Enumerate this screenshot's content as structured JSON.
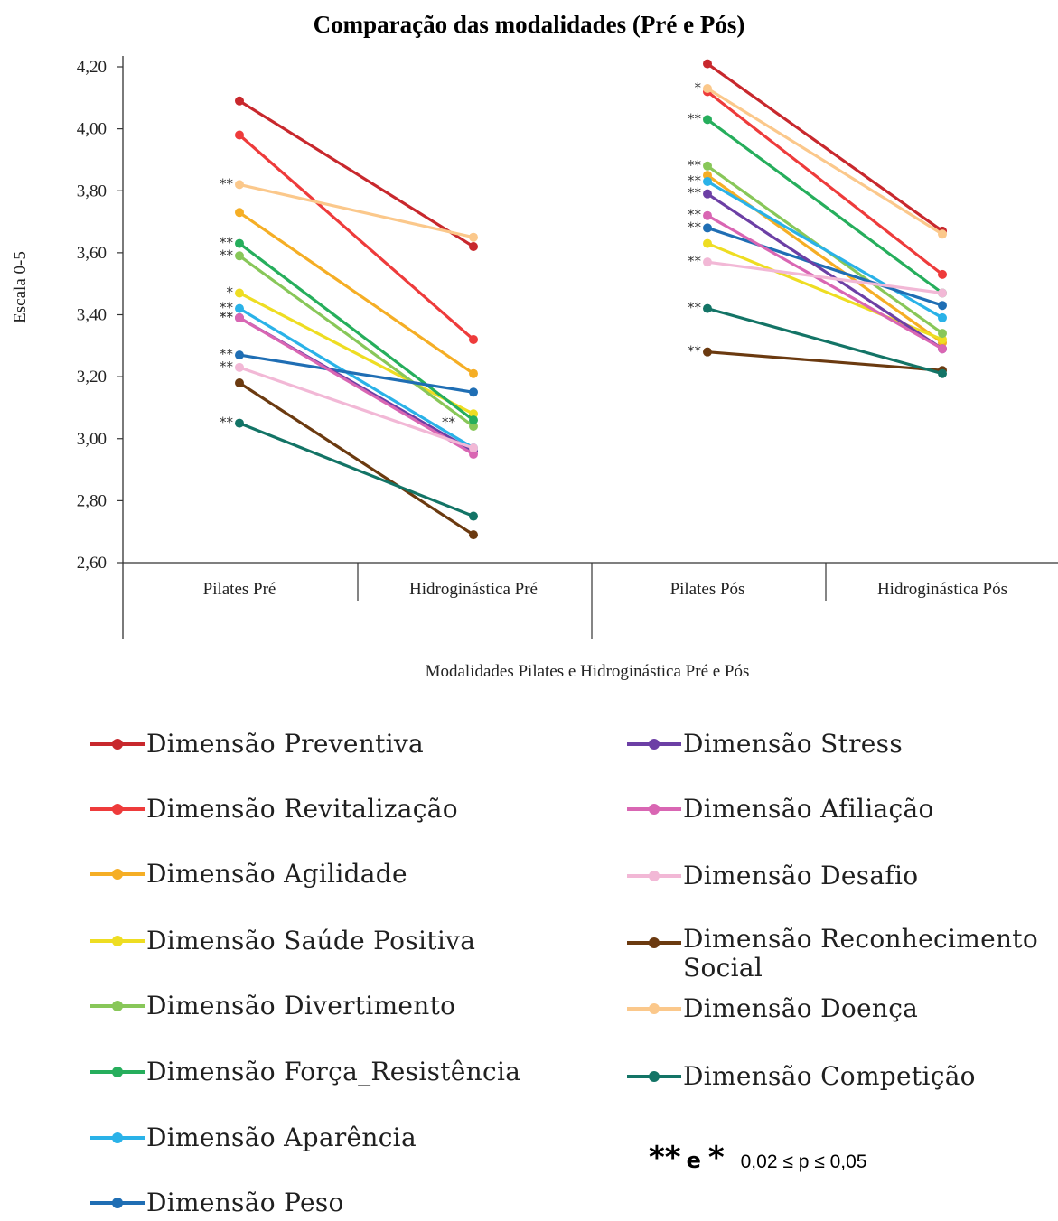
{
  "chart_data": {
    "type": "line",
    "title": "Comparação das modalidades (Pré e Pós)",
    "xlabel": "Modalidades Pilates e Hidroginástica Pré e Pós",
    "ylabel": "Escala 0-5",
    "ylim": [
      2.6,
      4.2
    ],
    "yticks": [
      "2,60",
      "2,80",
      "3,00",
      "3,20",
      "3,40",
      "3,60",
      "3,80",
      "4,00",
      "4,20"
    ],
    "categories": [
      "Pilates Pré",
      "Hidroginástica Pré",
      "Pilates Pós",
      "Hidroginástica Pós"
    ],
    "groups": [
      {
        "categories": [
          "Pilates Pré",
          "Hidroginástica Pré"
        ]
      },
      {
        "categories": [
          "Pilates Pós",
          "Hidroginástica Pós"
        ]
      }
    ],
    "grid": false,
    "legend_position": "bottom",
    "series": [
      {
        "name": "Dimensão Preventiva",
        "color": "#c8282d",
        "pre": [
          4.09,
          3.62
        ],
        "pos": [
          4.21,
          3.67
        ],
        "sig_pre": "",
        "sig_pos": ""
      },
      {
        "name": "Dimensão Revitalização",
        "color": "#ee3b3b",
        "pre": [
          3.98,
          3.32
        ],
        "pos": [
          4.12,
          3.53
        ],
        "sig_pre": "",
        "sig_pos": ""
      },
      {
        "name": "Dimensão Agilidade",
        "color": "#f5ae25",
        "pre": [
          3.73,
          3.21
        ],
        "pos": [
          3.85,
          3.31
        ],
        "sig_pre": "",
        "sig_pos": ""
      },
      {
        "name": "Dimensão Saúde Positiva",
        "color": "#eedd22",
        "pre": [
          3.47,
          3.08
        ],
        "pos": [
          3.63,
          3.32
        ],
        "sig_pre": "*",
        "sig_pos": ""
      },
      {
        "name": "Dimensão Divertimento",
        "color": "#88c759",
        "pre": [
          3.59,
          3.04
        ],
        "pos": [
          3.88,
          3.34
        ],
        "sig_pre": "**",
        "sig_pos": "**"
      },
      {
        "name": "Dimensão Força_Resistência",
        "color": "#26ae5c",
        "pre": [
          3.63,
          3.06
        ],
        "pos": [
          4.03,
          3.47
        ],
        "sig_pre": "**",
        "sig_pos": "**"
      },
      {
        "name": "Dimensão Aparência",
        "color": "#2ab2e8",
        "pre": [
          3.42,
          2.97
        ],
        "pos": [
          3.83,
          3.39
        ],
        "sig_pre": "**",
        "sig_pos": "**"
      },
      {
        "name": "Dimensão Peso",
        "color": "#1f6eb4",
        "pre": [
          3.27,
          3.15
        ],
        "pos": [
          3.68,
          3.43
        ],
        "sig_pre": "**",
        "sig_pos": "**"
      },
      {
        "name": "Dimensão Stress",
        "color": "#6c3fa5",
        "pre": [
          3.39,
          2.96
        ],
        "pos": [
          3.79,
          3.29
        ],
        "sig_pre": "**",
        "sig_pos": "**"
      },
      {
        "name": "Dimensão Afiliação",
        "color": "#d966b3",
        "pre": [
          3.39,
          2.95
        ],
        "pos": [
          3.72,
          3.29
        ],
        "sig_pre": "**",
        "sig_pos": "**"
      },
      {
        "name": "Dimensão Desafio",
        "color": "#f2b8d6",
        "pre": [
          3.23,
          2.97
        ],
        "pos": [
          3.57,
          3.47
        ],
        "sig_pre": "**",
        "sig_pos": "**"
      },
      {
        "name": "Dimensão Reconhecimento Social",
        "color": "#6b3a10",
        "pre": [
          3.18,
          2.69
        ],
        "pos": [
          3.28,
          3.22
        ],
        "sig_pre": "",
        "sig_pos": "**"
      },
      {
        "name": "Dimensão Doença",
        "color": "#fbc88b",
        "pre": [
          3.82,
          3.65
        ],
        "pos": [
          4.13,
          3.66
        ],
        "sig_pre": "**",
        "sig_pos": "*"
      },
      {
        "name": "Dimensão Competição",
        "color": "#137466",
        "pre": [
          3.05,
          2.75
        ],
        "pos": [
          3.42,
          3.21
        ],
        "sig_pre": "**",
        "sig_pos": "**"
      }
    ],
    "extra_marks": [
      {
        "text": "**",
        "category": "Hidroginástica Pré",
        "y": 3.05
      }
    ]
  },
  "note": {
    "stars": "** e *",
    "stars_a": "**",
    "e": "e",
    "stars_b": "*",
    "text": "0,02 ≤ p ≤ 0,05"
  }
}
